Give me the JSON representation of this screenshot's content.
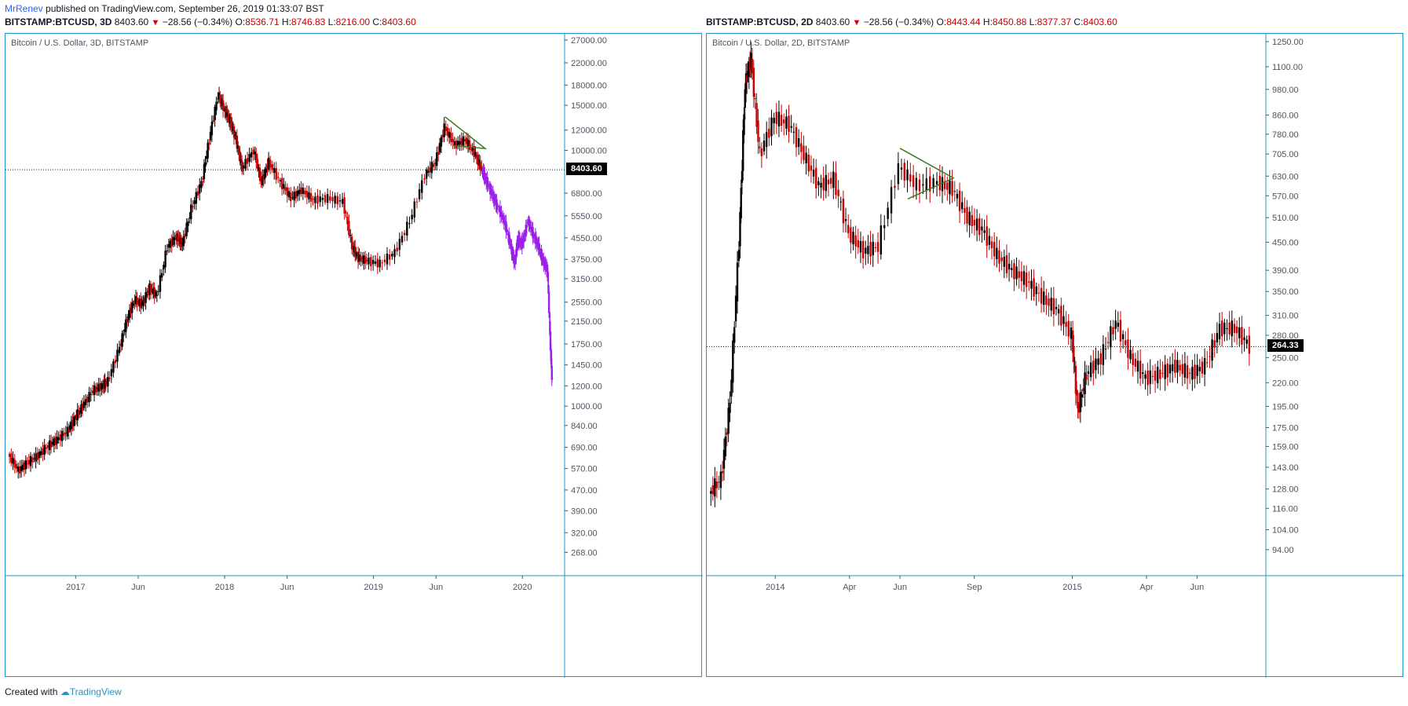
{
  "header": {
    "author": "MrRenev",
    "text": " published on TradingView.com, September 26, 2019 01:33:07 BST"
  },
  "left": {
    "legend": {
      "symbol": "BITSTAMP:BTCUSD, 3D",
      "last": "8403.60",
      "change": "−28.56 (−0.34%)",
      "o_label": "O:",
      "o": "8536.71",
      "h_label": "H:",
      "h": "8746.83",
      "l_label": "L:",
      "l": "8216.00",
      "c_label": "C:",
      "c": "8403.60"
    },
    "title": "Bitcoin / U.S. Dollar, 3D, BITSTAMP",
    "price_label": "8403.60"
  },
  "right": {
    "legend": {
      "symbol": "BITSTAMP:BTCUSD, 2D",
      "last": "8403.60",
      "change": "−28.56 (−0.34%)",
      "o_label": "O:",
      "o": "8443.44",
      "h_label": "H:",
      "h": "8450.88",
      "l_label": "L:",
      "l": "8377.37",
      "c_label": "C:",
      "c": "8403.60"
    },
    "title": "Bitcoin / U.S. Dollar, 2D, BITSTAMP",
    "price_label": "264.33"
  },
  "footer": {
    "prefix": "Created with ",
    "brand": "TradingView"
  },
  "colors": {
    "up": "#000000",
    "down": "#cc0000",
    "projection": "#9b1fe8",
    "triangle": "#3a7d1e",
    "border": "#2196c8"
  },
  "chart_data": [
    {
      "type": "candlestick",
      "title": "Bitcoin / U.S. Dollar, 3D, BITSTAMP",
      "y_scale": "log",
      "ylim": [
        230,
        27000
      ],
      "y_ticks": [
        "27000.00",
        "22000.00",
        "18000.00",
        "15000.00",
        "12000.00",
        "10000.00",
        "8403.60",
        "6800.00",
        "5550.00",
        "4550.00",
        "3750.00",
        "3150.00",
        "2550.00",
        "2150.00",
        "1750.00",
        "1450.00",
        "1200.00",
        "1000.00",
        "840.00",
        "690.00",
        "570.00",
        "470.00",
        "390.00",
        "320.00",
        "268.00"
      ],
      "x_ticks": [
        "2017",
        "Jun",
        "2018",
        "Jun",
        "2019",
        "Jun",
        "2020"
      ],
      "x_tick_times": [
        2017.0,
        2017.42,
        2018.0,
        2018.42,
        2019.0,
        2019.42,
        2020.0
      ],
      "xlim": [
        2016.55,
        2020.22
      ],
      "current_price": 8403.6,
      "series": [
        {
          "name": "",
          "x": [
            2016.55,
            2016.62,
            2016.68,
            2016.75,
            2016.82,
            2016.88,
            2016.95,
            2017.0,
            2017.05,
            2017.12,
            2017.18,
            2017.22,
            2017.3,
            2017.35,
            2017.4,
            2017.45,
            2017.5,
            2017.55,
            2017.62,
            2017.68,
            2017.72,
            2017.78,
            2017.85,
            2017.9,
            2017.96,
            2018.0,
            2018.04,
            2018.08,
            2018.12,
            2018.2,
            2018.25,
            2018.3,
            2018.38,
            2018.45,
            2018.52,
            2018.6,
            2018.7,
            2018.8,
            2018.86,
            2018.9,
            2018.96,
            2019.05,
            2019.15,
            2019.25,
            2019.35,
            2019.42,
            2019.48,
            2019.55,
            2019.62,
            2019.68,
            2019.73
          ],
          "y": [
            650,
            560,
            600,
            640,
            700,
            740,
            800,
            900,
            1000,
            1150,
            1200,
            1250,
            1700,
            2200,
            2600,
            2500,
            2900,
            2700,
            4200,
            4600,
            4300,
            5900,
            7500,
            11000,
            16500,
            14500,
            13000,
            11000,
            8500,
            10000,
            7500,
            9000,
            7500,
            6500,
            7000,
            6400,
            6500,
            6300,
            4200,
            3800,
            3700,
            3600,
            4000,
            5300,
            8000,
            9000,
            12300,
            10500,
            11000,
            9800,
            8400
          ]
        },
        {
          "name": "",
          "x": [
            2019.73,
            2019.76,
            2019.8,
            2019.83,
            2019.88,
            2019.92,
            2019.95,
            2019.97,
            2020.0,
            2020.04,
            2020.08,
            2020.11,
            2020.14,
            2020.17,
            2020.19,
            2020.2
          ],
          "y": [
            8400,
            7600,
            6700,
            6100,
            5300,
            4300,
            3600,
            4500,
            4300,
            5300,
            4600,
            4200,
            3700,
            3400,
            1700,
            1250
          ]
        }
      ],
      "annotations": [
        {
          "type": "symmetrical-triangle",
          "from": 2019.48,
          "to": 2019.75
        }
      ]
    },
    {
      "type": "candlestick",
      "title": "Bitcoin / U.S. Dollar, 2D, BITSTAMP",
      "y_scale": "log",
      "ylim": [
        85,
        1260
      ],
      "y_ticks": [
        "1250.00",
        "1100.00",
        "980.00",
        "860.00",
        "780.00",
        "705.00",
        "630.00",
        "570.00",
        "510.00",
        "450.00",
        "390.00",
        "350.00",
        "310.00",
        "280.00",
        "264.33",
        "250.00",
        "220.00",
        "195.00",
        "175.00",
        "159.00",
        "143.00",
        "128.00",
        "116.00",
        "104.00",
        "94.00"
      ],
      "x_ticks": [
        "2014",
        "Apr",
        "Jun",
        "Sep",
        "2015",
        "Apr",
        "Jun"
      ],
      "x_tick_times": [
        2014.0,
        2014.25,
        2014.42,
        2014.67,
        2015.0,
        2015.25,
        2015.42
      ],
      "xlim": [
        2013.78,
        2015.62
      ],
      "current_price": 264.33,
      "series": [
        {
          "name": "",
          "x": [
            2013.78,
            2013.82,
            2013.85,
            2013.88,
            2013.9,
            2013.92,
            2013.95,
            2014.0,
            2014.05,
            2014.1,
            2014.15,
            2014.2,
            2014.25,
            2014.3,
            2014.35,
            2014.42,
            2014.48,
            2014.55,
            2014.6,
            2014.65,
            2014.7,
            2014.75,
            2014.8,
            2014.85,
            2014.9,
            2014.95,
            2015.0,
            2015.02,
            2015.05,
            2015.1,
            2015.15,
            2015.2,
            2015.25,
            2015.3,
            2015.35,
            2015.4,
            2015.45,
            2015.5,
            2015.55,
            2015.6
          ],
          "y": [
            125,
            135,
            200,
            450,
            1000,
            1150,
            700,
            850,
            820,
            700,
            600,
            620,
            470,
            430,
            440,
            660,
            600,
            610,
            590,
            510,
            480,
            420,
            390,
            370,
            340,
            320,
            280,
            190,
            230,
            250,
            300,
            250,
            225,
            230,
            240,
            230,
            240,
            290,
            290,
            265
          ]
        }
      ],
      "annotations": [
        {
          "type": "symmetrical-triangle",
          "from": 2014.42,
          "to": 2014.6
        }
      ]
    }
  ]
}
